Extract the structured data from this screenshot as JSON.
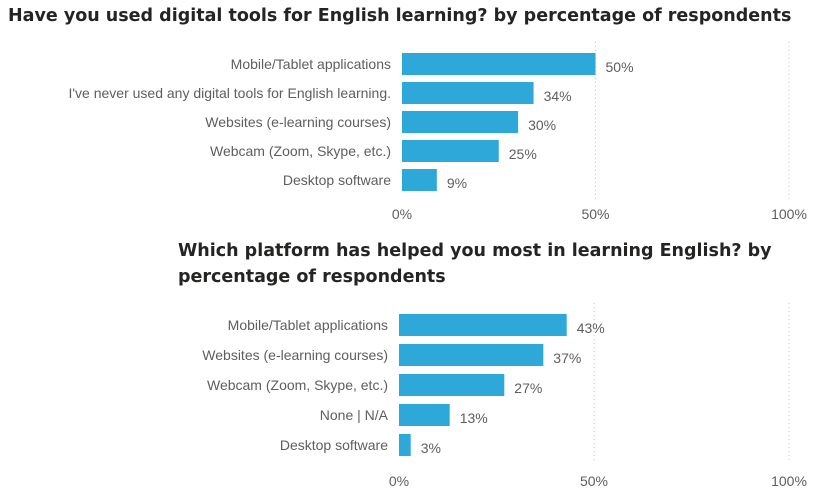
{
  "chart_data": [
    {
      "type": "bar",
      "orientation": "horizontal",
      "title": "Have you used digital tools for English learning? by percentage of respondents",
      "categories": [
        "Mobile/Tablet applications",
        "I've never used any digital tools for English learning.",
        "Websites (e-learning courses)",
        "Webcam (Zoom, Skype, etc.)",
        "Desktop software"
      ],
      "values": [
        50,
        34,
        30,
        25,
        9
      ],
      "value_labels": [
        "50%",
        "34%",
        "30%",
        "25%",
        "9%"
      ],
      "xlim": [
        0,
        100
      ],
      "x_ticks": [
        "0%",
        "50%",
        "100%"
      ],
      "grid": true,
      "color": "#2da8d8"
    },
    {
      "type": "bar",
      "orientation": "horizontal",
      "title": "Which platform has helped you most in learning English? by percentage of respondents",
      "categories": [
        "Mobile/Tablet applications",
        "Websites (e-learning courses)",
        "Webcam (Zoom, Skype, etc.)",
        "None | N/A",
        "Desktop software"
      ],
      "values": [
        43,
        37,
        27,
        13,
        3
      ],
      "value_labels": [
        "43%",
        "37%",
        "27%",
        "13%",
        "3%"
      ],
      "xlim": [
        0,
        100
      ],
      "x_ticks": [
        "0%",
        "50%",
        "100%"
      ],
      "grid": true,
      "color": "#2da8d8"
    }
  ]
}
